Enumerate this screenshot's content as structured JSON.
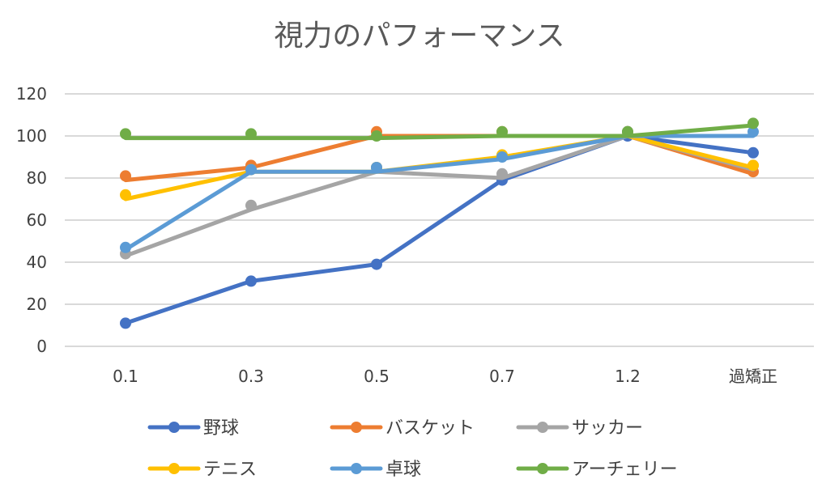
{
  "chart_data": {
    "type": "line",
    "title": "視力のパフォーマンス",
    "categories": [
      "0.1",
      "0.3",
      "0.5",
      "0.7",
      "1.2",
      "過矯正"
    ],
    "ylim": [
      0,
      120
    ],
    "yticks": [
      "0",
      "20",
      "40",
      "60",
      "80",
      "100",
      "120"
    ],
    "grid": true,
    "legend_position": "bottom",
    "series": [
      {
        "name": "野球",
        "color": "#4472C4",
        "values": [
          11,
          31,
          39,
          79,
          100,
          92
        ],
        "markers": [
          11,
          31,
          39,
          79,
          100,
          92
        ]
      },
      {
        "name": "バスケット",
        "color": "#ED7D31",
        "values": [
          79,
          85,
          100,
          100,
          100,
          82
        ],
        "markers": [
          81,
          86,
          102,
          102,
          102,
          83
        ]
      },
      {
        "name": "サッカー",
        "color": "#A5A5A5",
        "values": [
          43,
          65,
          83,
          80,
          100,
          84
        ],
        "markers": [
          44,
          67,
          85,
          82,
          102,
          86
        ]
      },
      {
        "name": "テニス",
        "color": "#FFC000",
        "values": [
          70,
          83,
          83,
          90,
          100,
          85
        ],
        "markers": [
          72,
          84,
          85,
          91,
          102,
          86
        ]
      },
      {
        "name": "卓球",
        "color": "#5B9BD5",
        "values": [
          46,
          83,
          83,
          89,
          100,
          100
        ],
        "markers": [
          47,
          84,
          85,
          90,
          102,
          102
        ]
      },
      {
        "name": "アーチェリー",
        "color": "#70AD47",
        "values": [
          99,
          99,
          99,
          100,
          100,
          105
        ],
        "markers": [
          101,
          101,
          100,
          102,
          102,
          106
        ]
      }
    ]
  }
}
